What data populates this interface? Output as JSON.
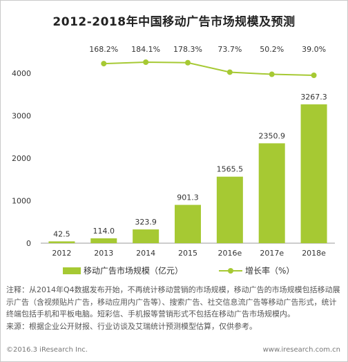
{
  "title": "2012-2018年中国移动广告市场规模及预测",
  "legend": {
    "bar_label": "移动广告市场规模（亿元）",
    "line_label": "增长率（%）"
  },
  "chart_data": {
    "type": "bar",
    "categories": [
      "2012",
      "2013",
      "2014",
      "2015",
      "2016e",
      "2017e",
      "2018e"
    ],
    "series": [
      {
        "name": "移动广告市场规模（亿元）",
        "type": "bar",
        "values": [
          42.5,
          114.0,
          323.9,
          901.3,
          1565.5,
          2350.9,
          3267.3
        ],
        "labels": [
          "42.5",
          "114.0",
          "323.9",
          "901.3",
          "1565.5",
          "2350.9",
          "3267.3"
        ]
      },
      {
        "name": "增长率（%）",
        "type": "line",
        "values": [
          null,
          168.2,
          184.1,
          178.3,
          73.7,
          50.2,
          39.0
        ],
        "labels": [
          "",
          "168.2%",
          "184.1%",
          "178.3%",
          "73.7%",
          "50.2%",
          "39.0%"
        ]
      }
    ],
    "yticks": [
      "0",
      "1000",
      "2000",
      "3000",
      "4000"
    ],
    "ylim": [
      0,
      4000
    ],
    "colors": {
      "bar": "#a6c933",
      "line": "#a6c933",
      "axis": "#999999"
    }
  },
  "notes": {
    "line1": "注释：从2014年Q4数据发布开始，不再统计移动营销的市场规模，移动广告的市场规模包括移动展示广告（含视频贴片广告，移动应用内广告等）、搜索广告、社交信息流广告等移动广告形式，统计终端包括手机和平板电脑。短彩信、手机报等营销形式不包括在移动广告市场规模内。",
    "line2": "来源：根据企业公开财报、行业访谈及艾瑞统计预测模型估算，仅供参考。"
  },
  "footer": {
    "left": "©2016.3 iResearch Inc.",
    "right": "www.iresearch.com.cn"
  }
}
